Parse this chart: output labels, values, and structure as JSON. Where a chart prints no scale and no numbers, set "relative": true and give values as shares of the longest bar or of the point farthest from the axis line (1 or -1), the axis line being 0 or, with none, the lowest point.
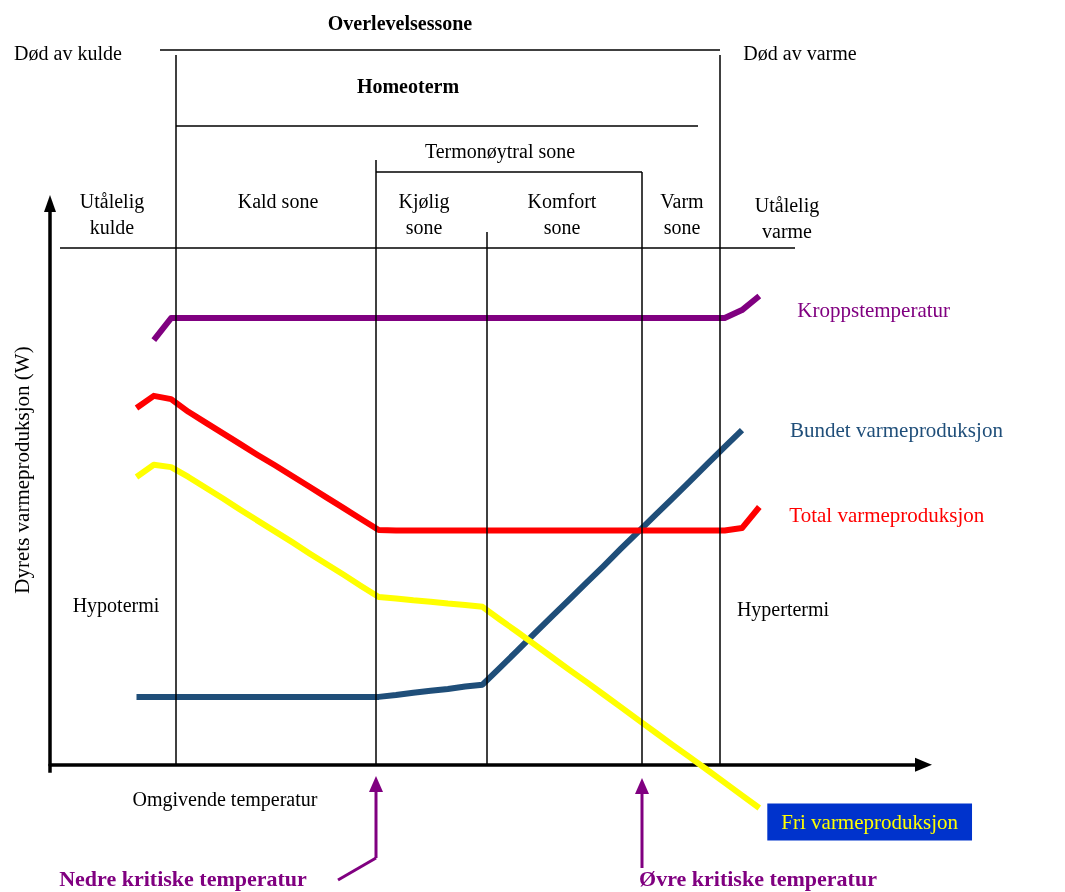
{
  "chart_data": {
    "type": "line",
    "relative": true,
    "xlabel": "Omgivende temperatur",
    "ylabel": "Dyrets varmeproduksjon (W)",
    "grid": false,
    "legend": false,
    "marker": "none",
    "line_style": "solid",
    "categories": [
      null,
      null,
      null,
      null,
      null,
      null,
      null,
      null,
      null,
      null,
      null,
      null,
      null,
      null,
      null,
      null,
      null,
      null,
      null,
      null,
      null,
      null,
      null,
      null,
      null,
      null,
      null,
      null,
      null,
      null,
      null,
      null,
      null,
      null,
      null,
      null,
      null,
      null,
      null,
      null,
      null,
      null,
      null,
      null,
      null,
      null,
      null,
      null,
      null,
      null,
      null
    ],
    "series": [
      {
        "name": "Kroppstemperatur",
        "color": "#800080",
        "values": [
          null,
          null,
          null,
          null,
          null,
          null,
          0.906,
          0.953,
          0.953,
          0.953,
          0.953,
          0.953,
          0.953,
          0.953,
          0.953,
          0.953,
          0.953,
          0.953,
          0.953,
          0.953,
          0.953,
          0.953,
          0.953,
          0.953,
          0.953,
          0.953,
          0.953,
          0.953,
          0.953,
          0.953,
          0.953,
          0.953,
          0.953,
          0.953,
          0.953,
          0.953,
          0.953,
          0.953,
          0.953,
          0.953,
          0.97,
          1,
          null,
          null,
          null,
          null,
          null,
          null,
          null,
          null,
          null
        ]
      },
      {
        "name": "Bundet varmeproduksjon",
        "color": "#1f4e79",
        "values": [
          null,
          null,
          null,
          null,
          null,
          0.145,
          0.145,
          0.145,
          0.145,
          0.145,
          0.145,
          0.145,
          0.145,
          0.145,
          0.145,
          0.145,
          0.145,
          0.145,
          0.145,
          0.145,
          0.149,
          0.154,
          0.158,
          0.162,
          0.167,
          0.171,
          0.207,
          0.243,
          0.28,
          0.316,
          0.352,
          0.388,
          0.424,
          0.461,
          0.497,
          0.533,
          0.569,
          0.605,
          0.642,
          0.678,
          0.714,
          null,
          null,
          null,
          null,
          null,
          null,
          null,
          null,
          null,
          null
        ]
      },
      {
        "name": "Total varmeproduksjon",
        "color": "#ff0000",
        "values": [
          null,
          null,
          null,
          null,
          null,
          0.761,
          0.787,
          0.78,
          0.753,
          0.73,
          0.707,
          0.684,
          0.661,
          0.639,
          0.616,
          0.593,
          0.57,
          0.547,
          0.524,
          0.501,
          0.5,
          0.5,
          0.5,
          0.5,
          0.5,
          0.5,
          0.5,
          0.5,
          0.5,
          0.5,
          0.5,
          0.5,
          0.5,
          0.5,
          0.5,
          0.5,
          0.5,
          0.5,
          0.5,
          0.5,
          0.505,
          0.55,
          null,
          null,
          null,
          null,
          null,
          null,
          null,
          null,
          null
        ]
      },
      {
        "name": "Fri varmeproduksjon",
        "color": "#ffff00",
        "values": [
          null,
          null,
          null,
          null,
          null,
          0.614,
          0.64,
          0.635,
          0.614,
          0.591,
          0.568,
          0.544,
          0.521,
          0.498,
          0.475,
          0.451,
          0.428,
          0.405,
          0.381,
          0.358,
          0.355,
          0.351,
          0.348,
          0.344,
          0.341,
          0.337,
          0.31,
          0.284,
          0.257,
          0.23,
          0.203,
          0.177,
          0.15,
          0.123,
          0.096,
          0.069,
          0.042,
          0.016,
          -0.011,
          -0.038,
          -0.065,
          -0.092,
          null,
          null,
          null,
          null,
          null,
          null,
          null,
          null,
          null
        ]
      }
    ],
    "annotations": [
      "Overlevelsessone",
      "Død av kulde",
      "Død av varme",
      "Homeoterm",
      "Termonøytral sone",
      "Utålelig kulde",
      "Kald sone",
      "Kjølig sone",
      "Komfort sone",
      "Varm sone",
      "Utålelig varme",
      "Hypotermi",
      "Hypertermi",
      "Nedre kritiske temperatur",
      "Øvre kritiske temperatur"
    ]
  }
}
